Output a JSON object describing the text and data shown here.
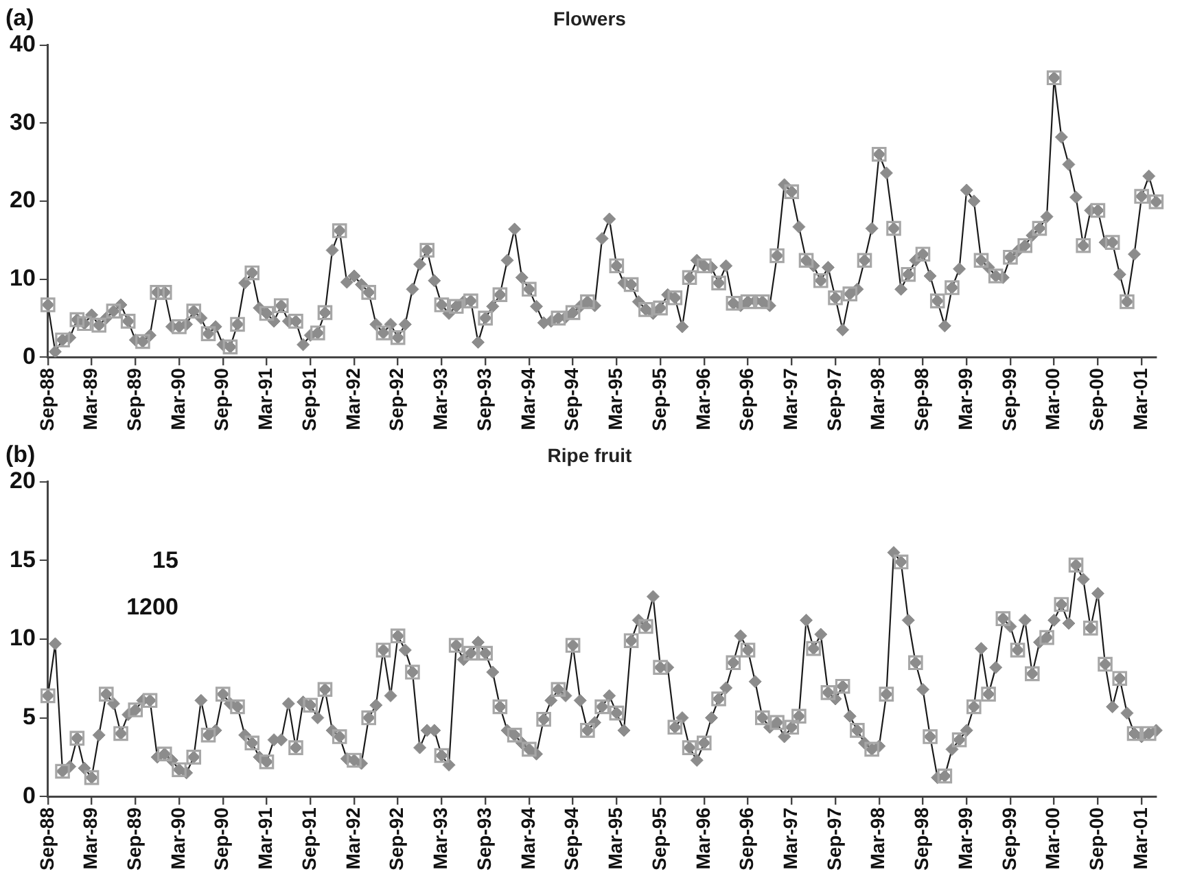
{
  "chart_data": [
    {
      "type": "line",
      "title": "Flowers",
      "annotations": [
        "(a)"
      ],
      "line_style": "solid",
      "grid": false,
      "ylim": [
        0,
        40
      ],
      "yticks": [
        0,
        10,
        20,
        30,
        40
      ],
      "categories": [
        "Sep-88",
        null,
        null,
        null,
        null,
        null,
        "Mar-89",
        null,
        null,
        null,
        null,
        null,
        "Sep-89",
        null,
        null,
        null,
        null,
        null,
        "Mar-90",
        null,
        null,
        null,
        null,
        null,
        "Sep-90",
        null,
        null,
        null,
        null,
        null,
        "Mar-91",
        null,
        null,
        null,
        null,
        null,
        "Sep-91",
        null,
        null,
        null,
        null,
        null,
        "Mar-92",
        null,
        null,
        null,
        null,
        null,
        "Sep-92",
        null,
        null,
        null,
        null,
        null,
        "Mar-93",
        null,
        null,
        null,
        null,
        null,
        "Sep-93",
        null,
        null,
        null,
        null,
        null,
        "Mar-94",
        null,
        null,
        null,
        null,
        null,
        "Sep-94",
        null,
        null,
        null,
        null,
        null,
        "Mar-95",
        null,
        null,
        null,
        null,
        null,
        "Sep-95",
        null,
        null,
        null,
        null,
        null,
        "Mar-96",
        null,
        null,
        null,
        null,
        null,
        "Sep-96",
        null,
        null,
        null,
        null,
        null,
        "Mar-97",
        null,
        null,
        null,
        null,
        null,
        "Sep-97",
        null,
        null,
        null,
        null,
        null,
        "Mar-98",
        null,
        null,
        null,
        null,
        null,
        "Sep-98",
        null,
        null,
        null,
        null,
        null,
        "Mar-99",
        null,
        null,
        null,
        null,
        null,
        "Sep-99",
        null,
        null,
        null,
        null,
        null,
        "Mar-00",
        null,
        null,
        null,
        null,
        null,
        "Sep-00",
        null,
        null,
        null,
        null,
        null,
        "Mar-01",
        null,
        null
      ],
      "series": [
        {
          "marker": "diamond",
          "color": "#8c8c8c",
          "values": [
            6.7,
            0.7,
            2.2,
            2.5,
            4.8,
            4.3,
            5.4,
            4.1,
            5.0,
            5.9,
            6.7,
            4.6,
            2.2,
            2.0,
            2.8,
            8.3,
            8.3,
            3.9,
            3.9,
            4.2,
            5.9,
            5.0,
            3.0,
            3.9,
            1.6,
            1.3,
            4.2,
            9.5,
            10.8,
            6.3,
            5.6,
            4.6,
            6.6,
            4.6,
            4.6,
            1.6,
            2.8,
            3.1,
            5.7,
            13.7,
            16.2,
            9.6,
            10.4,
            9.3,
            8.3,
            4.2,
            3.1,
            4.2,
            2.5,
            4.2,
            8.7,
            11.9,
            13.7,
            9.8,
            6.7,
            5.6,
            6.5,
            7.1,
            7.2,
            1.9,
            5.0,
            6.5,
            8.0,
            12.4,
            16.4,
            10.2,
            8.7,
            6.5,
            4.4,
            4.6,
            5.0,
            5.1,
            5.7,
            6.5,
            7.1,
            6.6,
            15.2,
            17.7,
            11.7,
            9.5,
            9.3,
            7.1,
            6.1,
            5.6,
            6.3,
            8.0,
            7.6,
            3.9,
            10.2,
            12.4,
            11.7,
            11.5,
            9.5,
            11.7,
            6.9,
            6.6,
            7.1,
            7.2,
            7.1,
            6.6,
            13.0,
            22.1,
            21.2,
            16.7,
            12.4,
            11.7,
            9.8,
            11.5,
            7.6,
            3.5,
            8.1,
            8.7,
            12.4,
            16.5,
            26.0,
            23.6,
            16.5,
            8.7,
            10.6,
            12.4,
            13.2,
            10.4,
            7.2,
            4.0,
            8.9,
            11.3,
            21.4,
            20.0,
            12.4,
            11.5,
            10.4,
            10.2,
            12.8,
            13.6,
            14.3,
            15.6,
            16.5,
            18.0,
            35.8,
            28.2,
            24.7,
            20.5,
            14.3,
            18.8,
            18.8,
            14.7,
            14.7,
            10.6,
            7.1,
            13.2,
            20.6,
            23.2,
            19.9
          ]
        },
        {
          "type": "scatter",
          "marker": "square",
          "color": "#a6a6a6",
          "values": [
            6.7,
            null,
            2.2,
            null,
            4.8,
            4.3,
            null,
            4.1,
            null,
            5.9,
            null,
            4.6,
            null,
            2.0,
            null,
            8.3,
            8.3,
            null,
            3.9,
            null,
            5.9,
            null,
            3.0,
            null,
            null,
            1.3,
            4.2,
            null,
            10.8,
            null,
            5.6,
            null,
            6.6,
            null,
            4.6,
            null,
            null,
            3.1,
            5.7,
            null,
            16.2,
            null,
            null,
            null,
            8.3,
            null,
            3.1,
            null,
            2.5,
            null,
            null,
            null,
            13.7,
            null,
            6.7,
            null,
            6.5,
            null,
            7.2,
            null,
            5.0,
            null,
            8.0,
            null,
            null,
            null,
            8.7,
            null,
            null,
            null,
            5.0,
            null,
            5.7,
            null,
            7.1,
            null,
            null,
            null,
            11.7,
            null,
            9.3,
            null,
            6.1,
            null,
            6.3,
            null,
            7.6,
            null,
            10.2,
            null,
            11.7,
            null,
            9.5,
            null,
            6.9,
            null,
            7.1,
            null,
            7.1,
            null,
            13.0,
            null,
            21.2,
            null,
            12.4,
            null,
            9.8,
            null,
            7.6,
            null,
            8.1,
            null,
            12.4,
            null,
            26.0,
            null,
            16.5,
            null,
            10.6,
            null,
            13.2,
            null,
            7.2,
            null,
            8.9,
            null,
            null,
            null,
            12.4,
            null,
            10.4,
            null,
            12.8,
            null,
            14.3,
            null,
            16.5,
            null,
            35.8,
            null,
            null,
            null,
            14.3,
            null,
            18.8,
            null,
            14.7,
            null,
            7.1,
            null,
            20.6,
            null,
            19.9
          ]
        }
      ]
    },
    {
      "type": "line",
      "title": "Ripe fruit",
      "annotations": [
        "(b)",
        "15",
        "1200"
      ],
      "line_style": "solid",
      "grid": false,
      "ylim": [
        0,
        20
      ],
      "yticks": [
        0,
        5,
        10,
        15,
        20
      ],
      "categories": [
        "Sep-88",
        null,
        null,
        null,
        null,
        null,
        "Mar-89",
        null,
        null,
        null,
        null,
        null,
        "Sep-89",
        null,
        null,
        null,
        null,
        null,
        "Mar-90",
        null,
        null,
        null,
        null,
        null,
        "Sep-90",
        null,
        null,
        null,
        null,
        null,
        "Mar-91",
        null,
        null,
        null,
        null,
        null,
        "Sep-91",
        null,
        null,
        null,
        null,
        null,
        "Mar-92",
        null,
        null,
        null,
        null,
        null,
        "Sep-92",
        null,
        null,
        null,
        null,
        null,
        "Mar-93",
        null,
        null,
        null,
        null,
        null,
        "Sep-93",
        null,
        null,
        null,
        null,
        null,
        "Mar-94",
        null,
        null,
        null,
        null,
        null,
        "Sep-94",
        null,
        null,
        null,
        null,
        null,
        "Mar-95",
        null,
        null,
        null,
        null,
        null,
        "Sep-95",
        null,
        null,
        null,
        null,
        null,
        "Mar-96",
        null,
        null,
        null,
        null,
        null,
        "Sep-96",
        null,
        null,
        null,
        null,
        null,
        "Mar-97",
        null,
        null,
        null,
        null,
        null,
        "Sep-97",
        null,
        null,
        null,
        null,
        null,
        "Mar-98",
        null,
        null,
        null,
        null,
        null,
        "Sep-98",
        null,
        null,
        null,
        null,
        null,
        "Mar-99",
        null,
        null,
        null,
        null,
        null,
        "Sep-99",
        null,
        null,
        null,
        null,
        null,
        "Mar-00",
        null,
        null,
        null,
        null,
        null,
        "Sep-00",
        null,
        null,
        null,
        null,
        null,
        "Mar-01",
        null,
        null
      ],
      "series": [
        {
          "marker": "diamond",
          "color": "#8c8c8c",
          "values": [
            6.4,
            9.7,
            1.6,
            1.9,
            3.7,
            1.8,
            1.2,
            3.9,
            6.5,
            5.9,
            4.0,
            5.2,
            5.5,
            6.1,
            6.1,
            2.5,
            2.7,
            2.3,
            1.7,
            1.5,
            2.5,
            6.1,
            3.9,
            4.2,
            6.5,
            5.9,
            5.7,
            3.9,
            3.4,
            2.5,
            2.2,
            3.6,
            3.6,
            5.9,
            3.1,
            6.0,
            5.8,
            5.0,
            6.8,
            4.2,
            3.8,
            2.4,
            2.3,
            2.1,
            5.0,
            5.8,
            9.3,
            6.4,
            10.2,
            9.3,
            7.9,
            3.1,
            4.2,
            4.2,
            2.6,
            2.0,
            9.6,
            8.7,
            9.1,
            9.8,
            9.1,
            7.9,
            5.7,
            4.2,
            3.9,
            3.4,
            3.0,
            2.7,
            4.9,
            6.1,
            6.8,
            6.4,
            9.6,
            6.1,
            4.2,
            4.7,
            5.7,
            6.4,
            5.3,
            4.2,
            9.9,
            11.2,
            10.8,
            12.7,
            8.2,
            8.2,
            4.4,
            5.0,
            3.1,
            2.3,
            3.4,
            5.0,
            6.2,
            6.9,
            8.5,
            10.2,
            9.3,
            7.3,
            5.0,
            4.4,
            4.7,
            3.8,
            4.4,
            5.1,
            11.2,
            9.4,
            10.3,
            6.6,
            6.2,
            7.0,
            5.1,
            4.2,
            3.4,
            3.0,
            3.2,
            6.5,
            15.5,
            14.9,
            11.2,
            8.5,
            6.8,
            3.8,
            1.2,
            1.3,
            3.0,
            3.6,
            4.2,
            5.7,
            9.4,
            6.5,
            8.2,
            11.3,
            10.8,
            9.3,
            11.2,
            7.8,
            9.8,
            10.1,
            11.2,
            12.2,
            11.0,
            14.7,
            13.8,
            10.7,
            12.9,
            8.4,
            5.7,
            7.5,
            5.3,
            4.0,
            3.8,
            4.0,
            4.2
          ]
        },
        {
          "type": "scatter",
          "marker": "square",
          "color": "#a6a6a6",
          "values": [
            6.4,
            null,
            1.6,
            null,
            3.7,
            null,
            1.2,
            null,
            6.5,
            null,
            4.0,
            null,
            5.5,
            null,
            6.1,
            null,
            2.7,
            null,
            1.7,
            null,
            2.5,
            null,
            3.9,
            null,
            6.5,
            null,
            5.7,
            null,
            3.4,
            null,
            2.2,
            null,
            null,
            null,
            3.1,
            null,
            5.8,
            null,
            6.8,
            null,
            3.8,
            null,
            2.3,
            null,
            5.0,
            null,
            9.3,
            null,
            10.2,
            null,
            7.9,
            null,
            null,
            null,
            2.6,
            null,
            9.6,
            null,
            9.1,
            null,
            9.1,
            null,
            5.7,
            null,
            3.9,
            null,
            3.0,
            null,
            4.9,
            null,
            6.8,
            null,
            9.6,
            null,
            4.2,
            null,
            5.7,
            null,
            5.3,
            null,
            9.9,
            null,
            10.8,
            null,
            8.2,
            null,
            4.4,
            null,
            3.1,
            null,
            3.4,
            null,
            6.2,
            null,
            8.5,
            null,
            9.3,
            null,
            5.0,
            null,
            4.7,
            null,
            4.4,
            5.1,
            null,
            9.4,
            null,
            6.6,
            null,
            7.0,
            null,
            4.2,
            null,
            3.0,
            null,
            6.5,
            null,
            14.9,
            null,
            8.5,
            null,
            3.8,
            null,
            1.3,
            null,
            3.6,
            null,
            5.7,
            null,
            6.5,
            null,
            11.3,
            null,
            9.3,
            null,
            7.8,
            null,
            10.1,
            null,
            12.2,
            null,
            14.7,
            null,
            10.7,
            null,
            8.4,
            null,
            7.5,
            null,
            4.0,
            null,
            4.0,
            null
          ]
        }
      ]
    }
  ]
}
